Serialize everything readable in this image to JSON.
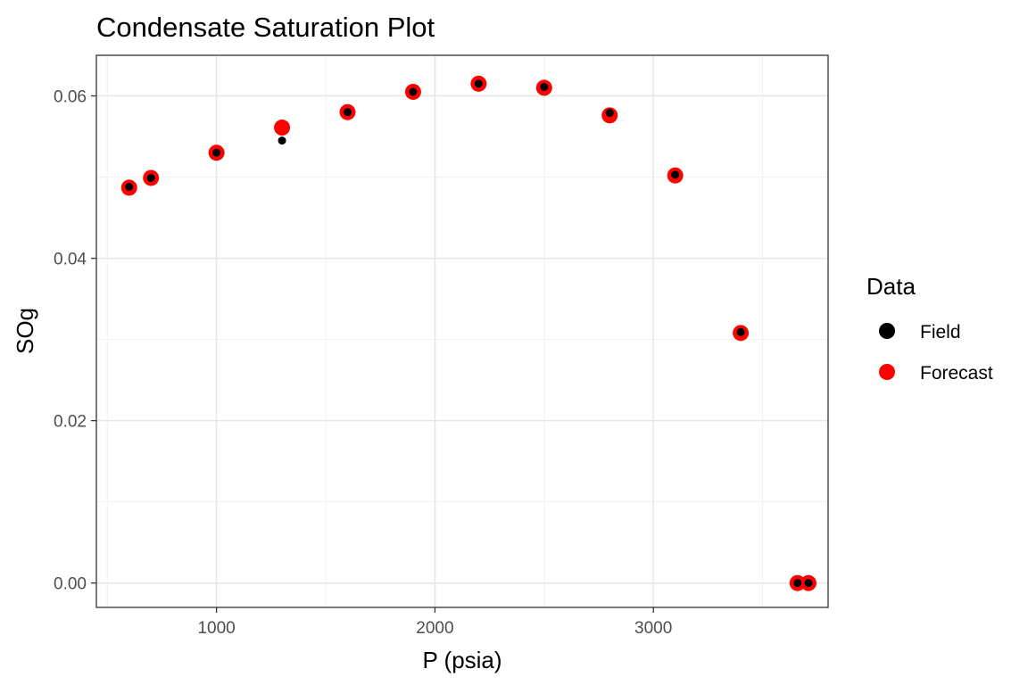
{
  "chart_data": {
    "type": "scatter",
    "title": "Condensate Saturation Plot",
    "xlabel": "P (psia)",
    "ylabel": "SOg",
    "xlim": [
      450,
      3800
    ],
    "ylim": [
      -0.003,
      0.065
    ],
    "x_ticks": [
      1000,
      2000,
      3000
    ],
    "x_tick_labels": [
      "1000",
      "2000",
      "3000"
    ],
    "y_ticks": [
      0,
      0.02,
      0.04,
      0.06
    ],
    "y_tick_labels": [
      "0.00",
      "0.02",
      "0.04",
      "0.06"
    ],
    "grid": true,
    "legend": {
      "title": "Data",
      "position": "right"
    },
    "series": [
      {
        "name": "Field",
        "color": "#000000",
        "points": [
          {
            "x": 600,
            "y": 0.0488
          },
          {
            "x": 700,
            "y": 0.0499
          },
          {
            "x": 1000,
            "y": 0.053
          },
          {
            "x": 1300,
            "y": 0.0545
          },
          {
            "x": 1600,
            "y": 0.058
          },
          {
            "x": 1900,
            "y": 0.0605
          },
          {
            "x": 2200,
            "y": 0.0615
          },
          {
            "x": 2500,
            "y": 0.0611
          },
          {
            "x": 2800,
            "y": 0.0579
          },
          {
            "x": 3100,
            "y": 0.0503
          },
          {
            "x": 3400,
            "y": 0.0309
          },
          {
            "x": 3660,
            "y": 0.0
          },
          {
            "x": 3710,
            "y": 0.0
          }
        ]
      },
      {
        "name": "Forecast",
        "color": "#ff0000",
        "points": [
          {
            "x": 600,
            "y": 0.0487
          },
          {
            "x": 700,
            "y": 0.0499
          },
          {
            "x": 1000,
            "y": 0.053
          },
          {
            "x": 1300,
            "y": 0.0561
          },
          {
            "x": 1600,
            "y": 0.058
          },
          {
            "x": 1900,
            "y": 0.0605
          },
          {
            "x": 2200,
            "y": 0.0615
          },
          {
            "x": 2500,
            "y": 0.061
          },
          {
            "x": 2800,
            "y": 0.0576
          },
          {
            "x": 3100,
            "y": 0.0502
          },
          {
            "x": 3400,
            "y": 0.0308
          },
          {
            "x": 3660,
            "y": 0.0
          },
          {
            "x": 3710,
            "y": 0.0
          }
        ]
      }
    ]
  }
}
